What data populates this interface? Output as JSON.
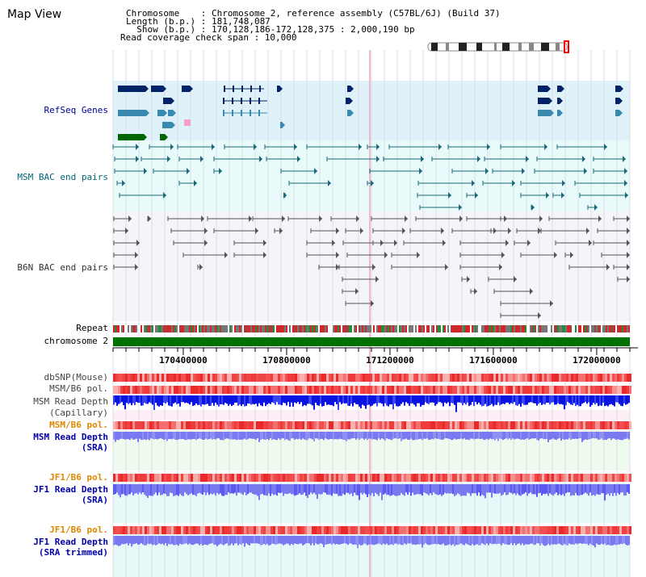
{
  "view_title": "Map View",
  "header": {
    "line1": "Chromosome    : Chromosome 2, reference assembly (C57BL/6J) (Build 37)",
    "line2": "Length (b.p.) : 181,748,087",
    "line3": "  Show (b.p.) : 170,128,186-172,128,375 : 2,000,190 bp",
    "line4": "Read coverage check span : 10,000"
  },
  "tracks": {
    "refseq": {
      "label": "RefSeq Genes",
      "color": "#000099"
    },
    "msm_bac": {
      "label": "MSM BAC end pairs",
      "color": "#006677"
    },
    "b6n_bac": {
      "label": "B6N BAC end pairs",
      "color": "#333333"
    },
    "repeat": {
      "label": "Repeat",
      "color": "#000000"
    },
    "chromosome": {
      "label": "chromosome 2",
      "color": "#000000"
    },
    "dbsnp": {
      "label": "dbSNP(Mouse)",
      "color": "#444444"
    },
    "msm_b6_pol": {
      "label": "MSM/B6 pol.",
      "color": "#444444"
    },
    "msm_depth_cap": {
      "label1": "MSM Read Depth",
      "label2": "(Capillary)",
      "color": "#444444"
    },
    "msm_b6_pol2": {
      "label": "MSM/B6 pol.",
      "color": "#dd8800"
    },
    "msm_depth_sra": {
      "label1": "MSM Read Depth",
      "label2": "(SRA)",
      "color": "#0000aa"
    },
    "jf1_b6_pol": {
      "label": "JF1/B6 pol.",
      "color": "#dd8800"
    },
    "jf1_depth_sra": {
      "label1": "JF1 Read Depth",
      "label2": "(SRA)",
      "color": "#0000aa"
    },
    "jf1_b6_pol2": {
      "label": "JF1/B6 pol.",
      "color": "#dd8800"
    },
    "jf1_depth_trim": {
      "label1": "JF1 Read Depth",
      "label2": "(SRA trimmed)",
      "color": "#0000aa"
    }
  },
  "axis": {
    "ticks": [
      {
        "value": 170400000,
        "label": "170400000"
      },
      {
        "value": 170800000,
        "label": "170800000"
      },
      {
        "value": 171200000,
        "label": "171200000"
      },
      {
        "value": 171600000,
        "label": "171600000"
      },
      {
        "value": 172000000,
        "label": "172000000"
      }
    ],
    "start": 170128186,
    "end": 172128375
  },
  "colors": {
    "refseq_bg": "#dff2fa",
    "msm_bg": "#e8fafa",
    "b6n_bg": "#f4f4fa",
    "chromosome": "#007000",
    "depth_blue": "#0a14e0",
    "depth_light": "#7a7af0",
    "pol_red": "#ef3a3a",
    "bg_pink": "#fbeef4",
    "bg_mint": "#eefaee",
    "bg_cyan": "#e6f8f8"
  }
}
